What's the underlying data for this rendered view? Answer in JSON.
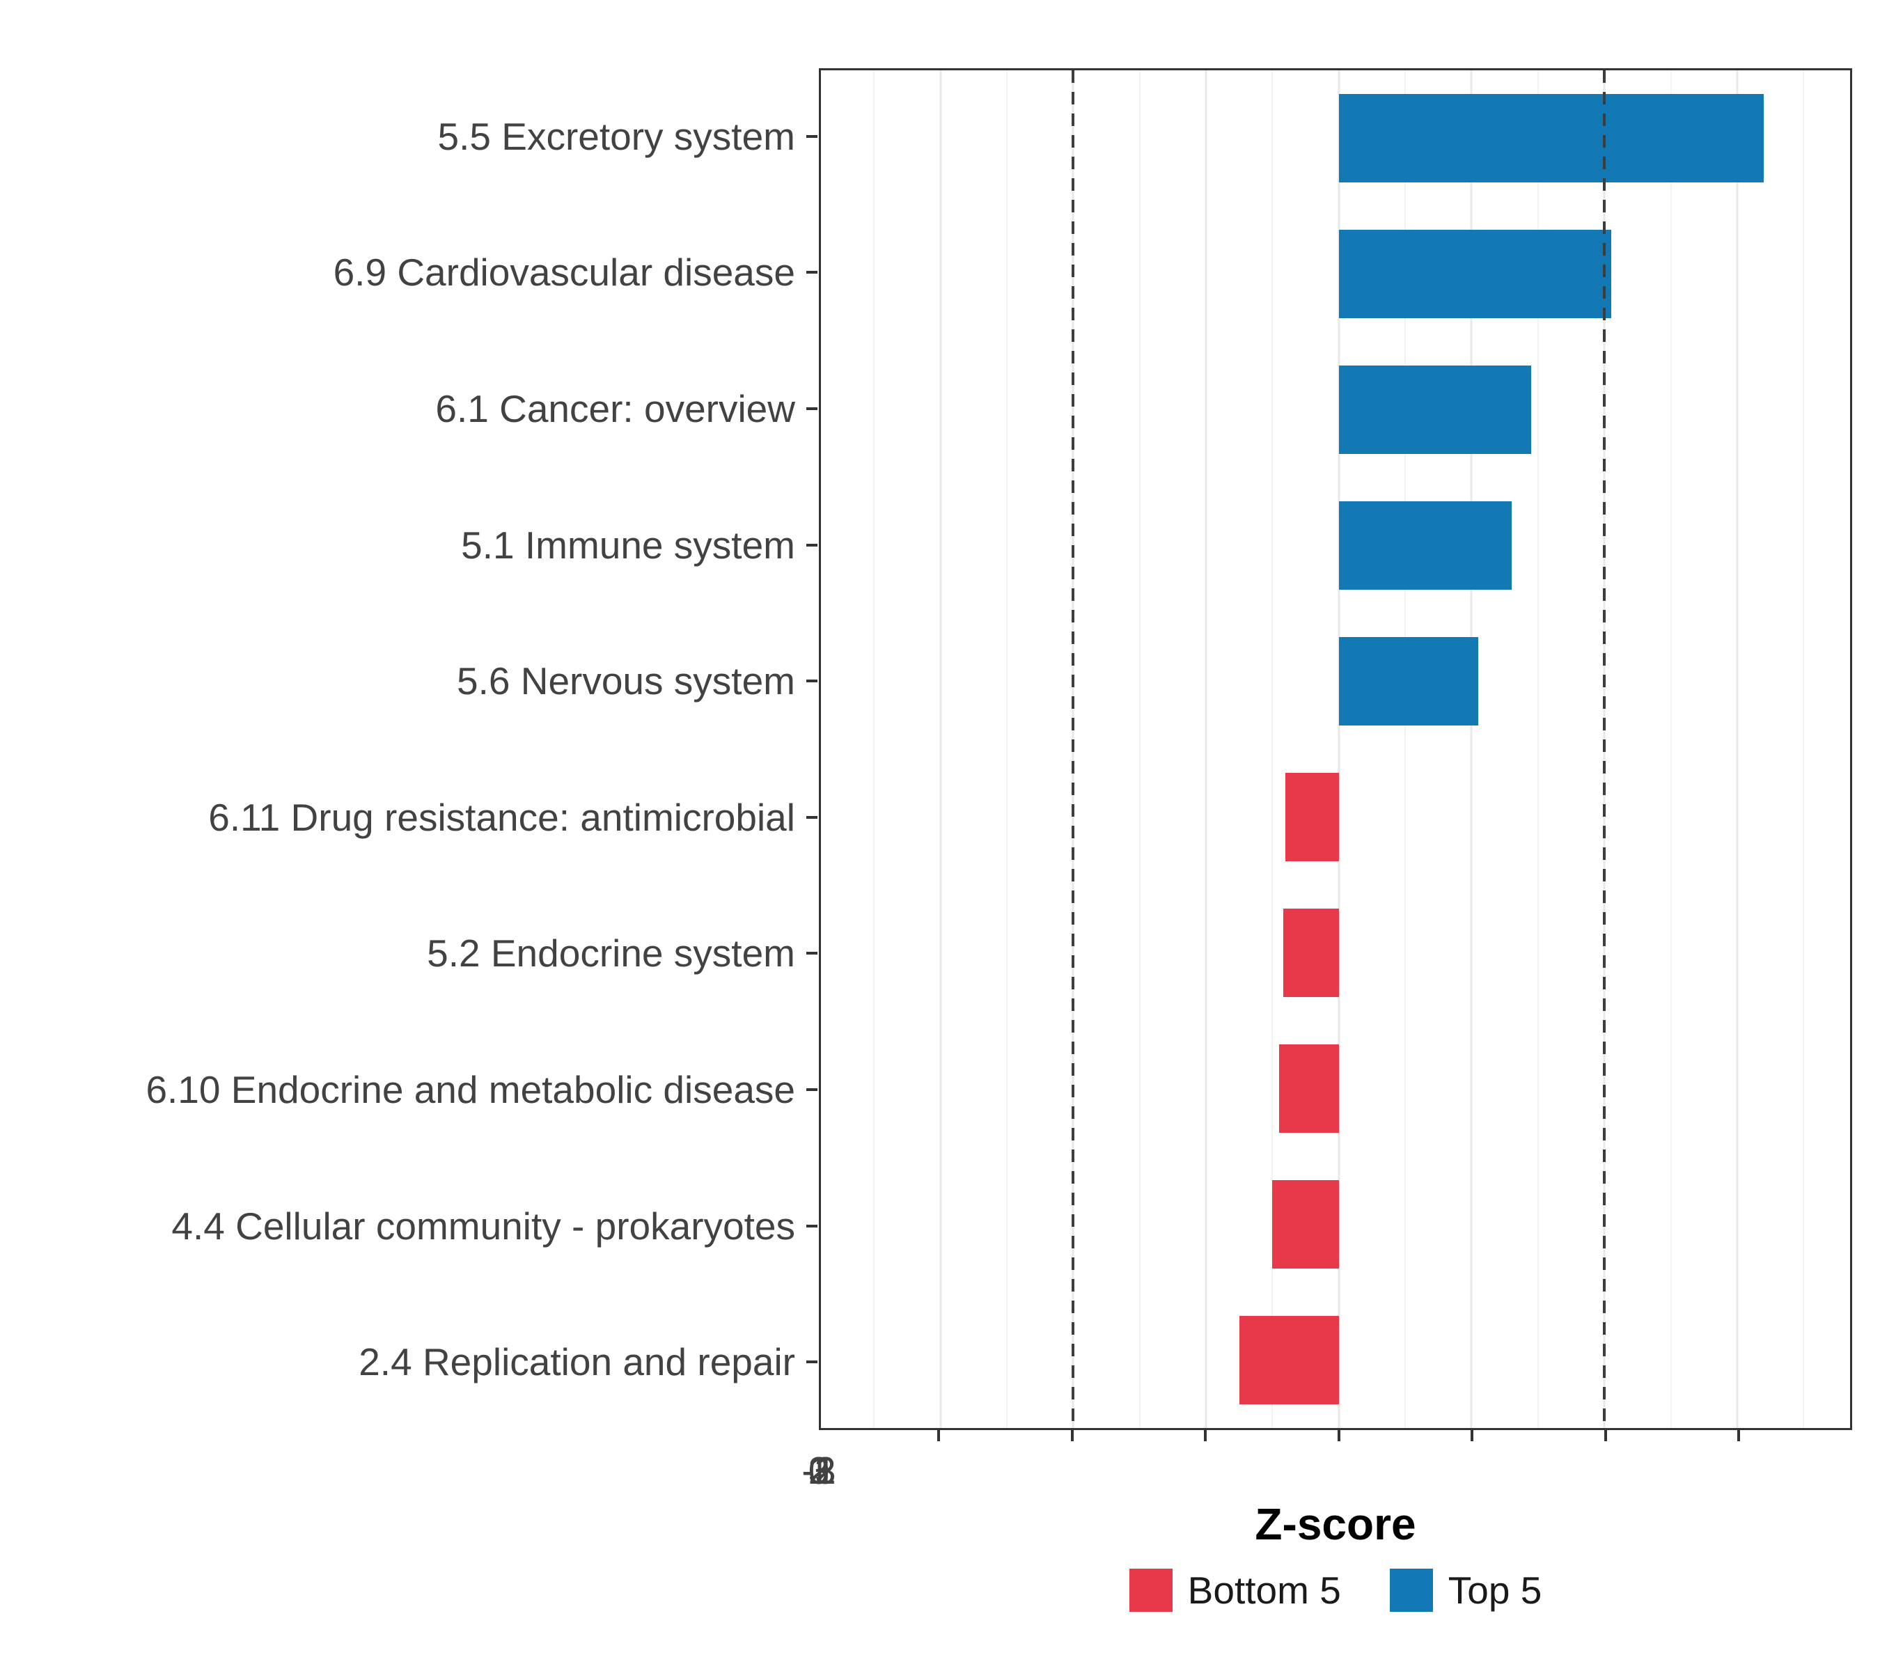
{
  "chart_data": {
    "type": "bar",
    "orientation": "horizontal",
    "xlabel": "Z-score",
    "xlim": [
      -3.9,
      3.85
    ],
    "xticks": [
      -3,
      -2,
      -1,
      0,
      1,
      2,
      3
    ],
    "minor_ticks": [
      -3.5,
      -2.5,
      -1.5,
      -0.5,
      0.5,
      1.5,
      2.5,
      3.5
    ],
    "dashed_lines": [
      -2,
      2
    ],
    "grid": true,
    "bar_band_fraction": 0.65,
    "categories": [
      "5.5 Excretory system",
      "6.9 Cardiovascular disease",
      "6.1 Cancer: overview",
      "5.1 Immune system",
      "5.6 Nervous system",
      "6.11 Drug resistance: antimicrobial",
      "5.2 Endocrine system",
      "6.10 Endocrine and metabolic disease",
      "4.4 Cellular community - prokaryotes",
      "2.4 Replication and repair"
    ],
    "values": [
      3.2,
      2.05,
      1.45,
      1.3,
      1.05,
      -0.4,
      -0.42,
      -0.45,
      -0.5,
      -0.75
    ],
    "groups": [
      "Top 5",
      "Top 5",
      "Top 5",
      "Top 5",
      "Top 5",
      "Bottom 5",
      "Bottom 5",
      "Bottom 5",
      "Bottom 5",
      "Bottom 5"
    ],
    "colors": {
      "Top 5": "#1379B5",
      "Bottom 5": "#E8394A"
    },
    "legend": [
      {
        "label": "Bottom 5",
        "color": "#E8394A"
      },
      {
        "label": "Top 5",
        "color": "#1379B5"
      }
    ],
    "legend_position": "bottom"
  }
}
